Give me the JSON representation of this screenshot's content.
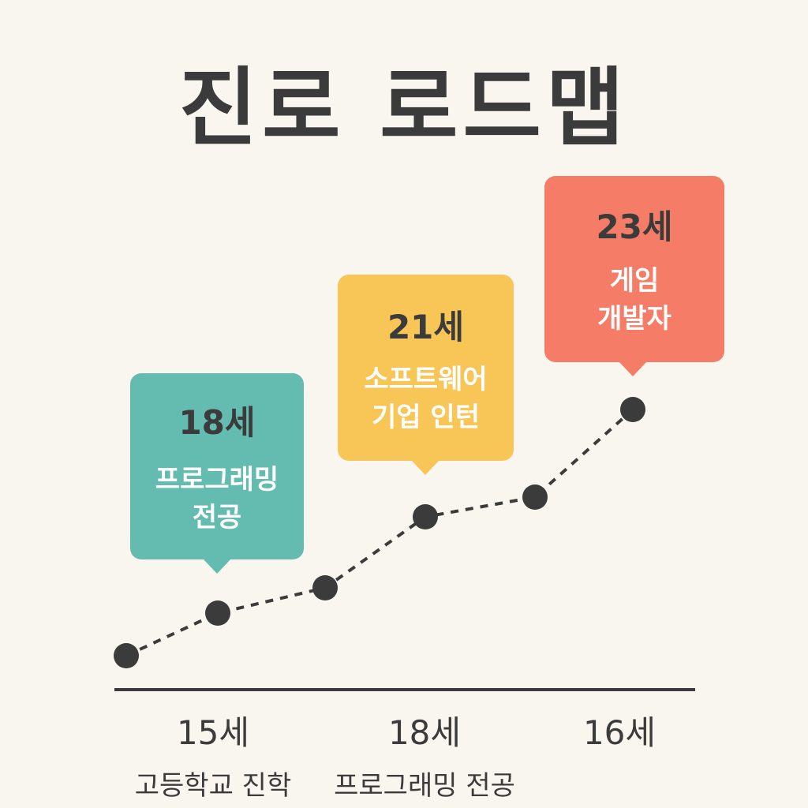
{
  "title": "진로 로드맵",
  "milestones": [
    {
      "age": "18세",
      "label": "프로그래밍\n전공",
      "color": "#64bcb0"
    },
    {
      "age": "21세",
      "label": "소프트웨어\n기업 인턴",
      "color": "#f8c657"
    },
    {
      "age": "23세",
      "label": "게임\n개발자",
      "color": "#f57d67"
    }
  ],
  "axis": [
    {
      "age": "15세",
      "label": "고등학교 진학"
    },
    {
      "age": "18세",
      "label": "프로그래밍\n전공"
    },
    {
      "age": "16세",
      "label": ""
    }
  ],
  "colors": {
    "background": "#f9f6ef",
    "path": "#3b3b3b"
  }
}
